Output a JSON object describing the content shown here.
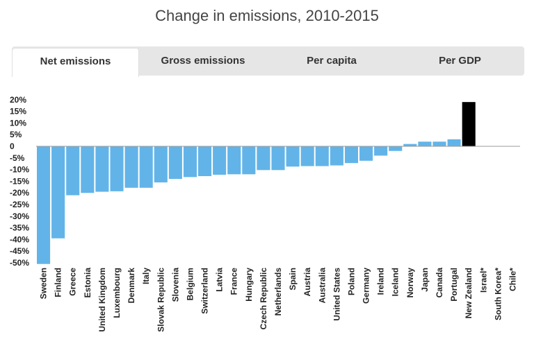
{
  "title": "Change in emissions, 2010-2015",
  "tabs": [
    {
      "label": "Net emissions",
      "active": true
    },
    {
      "label": "Gross emissions",
      "active": false
    },
    {
      "label": "Per capita",
      "active": false
    },
    {
      "label": "Per GDP",
      "active": false
    }
  ],
  "colors": {
    "bar": "#62b4e8",
    "highlight": "#000000",
    "axis": "#999999",
    "text": "#222222"
  },
  "chart_data": {
    "type": "bar",
    "title": "Change in emissions, 2010-2015",
    "xlabel": "",
    "ylabel": "",
    "ylim": [
      -52,
      22
    ],
    "yticks": [
      20,
      15,
      10,
      5,
      0,
      -5,
      -10,
      -15,
      -20,
      -25,
      -30,
      -35,
      -40,
      -45,
      -50
    ],
    "ytick_labels": [
      "20%",
      "15%",
      "10%",
      "5%",
      "0",
      "-5%",
      "-10%",
      "-15%",
      "-20%",
      "-25%",
      "-30%",
      "-35%",
      "-40%",
      "-45%",
      "-50%"
    ],
    "grid": false,
    "highlight_category": "New Zealand",
    "categories": [
      "Sweden",
      "Finland",
      "Greece",
      "Estonia",
      "United Kingdom",
      "Luxembourg",
      "Denmark",
      "Italy",
      "Slovak Republic",
      "Slovenia",
      "Belgium",
      "Switzerland",
      "Latvia",
      "France",
      "Hungary",
      "Czech Republic",
      "Netherlands",
      "Spain",
      "Austria",
      "Australia",
      "United States",
      "Poland",
      "Germany",
      "Ireland",
      "Iceland",
      "Norway",
      "Japan",
      "Canada",
      "Portugal",
      "New Zealand",
      "Israel*",
      "South Korea*",
      "Chile*"
    ],
    "values": [
      -50.5,
      -39.5,
      -21.0,
      -20.0,
      -19.5,
      -19.3,
      -17.8,
      -17.8,
      -15.5,
      -14.0,
      -13.2,
      -12.8,
      -12.2,
      -12.0,
      -12.0,
      -10.2,
      -10.2,
      -8.7,
      -8.5,
      -8.5,
      -8.2,
      -7.2,
      -6.2,
      -4.0,
      -2.0,
      1.0,
      2.0,
      2.0,
      3.0,
      19.0,
      0,
      0,
      0
    ]
  }
}
